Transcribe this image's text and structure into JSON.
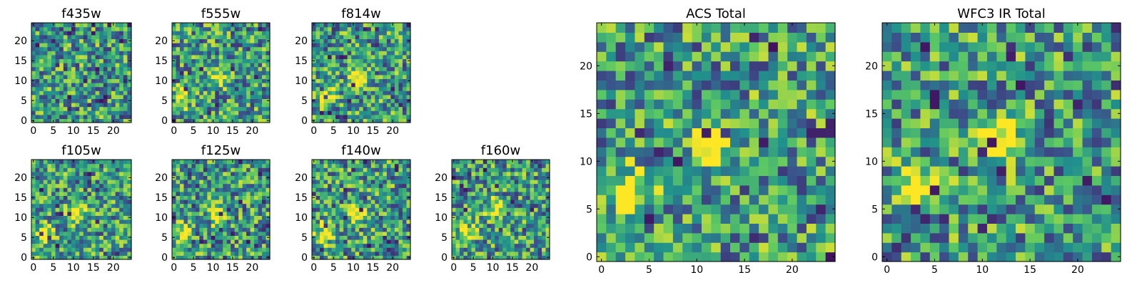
{
  "chart_data": [
    {
      "type": "heatmap",
      "title": "f435w",
      "x_ticks": [
        "0",
        "5",
        "10",
        "15",
        "20"
      ],
      "y_ticks": [
        "0",
        "5",
        "10",
        "15",
        "20"
      ],
      "xlim": [
        -0.5,
        24.5
      ],
      "ylim": [
        -0.5,
        24.5
      ],
      "grid": false,
      "colormap": [
        "#440154",
        "#3b528b",
        "#21918c",
        "#5ec962",
        "#fde725"
      ],
      "bright_spots": []
    },
    {
      "type": "heatmap",
      "title": "f555w",
      "x_ticks": [
        "0",
        "5",
        "10",
        "15",
        "20"
      ],
      "y_ticks": [
        "0",
        "5",
        "10",
        "15",
        "20"
      ],
      "xlim": [
        -0.5,
        24.5
      ],
      "ylim": [
        -0.5,
        24.5
      ],
      "grid": false,
      "colormap": [
        "#440154",
        "#3b528b",
        "#21918c",
        "#5ec962",
        "#fde725"
      ],
      "bright_spots": [
        {
          "x": 2,
          "y": 6
        },
        {
          "x": 11,
          "y": 11
        }
      ]
    },
    {
      "type": "heatmap",
      "title": "f814w",
      "x_ticks": [
        "0",
        "5",
        "10",
        "15",
        "20"
      ],
      "y_ticks": [
        "0",
        "5",
        "10",
        "15",
        "20"
      ],
      "xlim": [
        -0.5,
        24.5
      ],
      "ylim": [
        -0.5,
        24.5
      ],
      "grid": false,
      "colormap": [
        "#440154",
        "#3b528b",
        "#21918c",
        "#5ec962",
        "#fde725"
      ],
      "bright_spots": [
        {
          "x": 3,
          "y": 6
        },
        {
          "x": 11,
          "y": 11
        }
      ]
    },
    {
      "type": "heatmap",
      "title": "f105w",
      "x_ticks": [
        "0",
        "5",
        "10",
        "15",
        "20"
      ],
      "y_ticks": [
        "0",
        "5",
        "10",
        "15",
        "20"
      ],
      "xlim": [
        -0.5,
        24.5
      ],
      "ylim": [
        -0.5,
        24.5
      ],
      "grid": false,
      "colormap": [
        "#440154",
        "#3b528b",
        "#21918c",
        "#5ec962",
        "#fde725"
      ],
      "bright_spots": [
        {
          "x": 11,
          "y": 11
        },
        {
          "x": 3,
          "y": 6
        }
      ]
    },
    {
      "type": "heatmap",
      "title": "f125w",
      "x_ticks": [
        "0",
        "5",
        "10",
        "15",
        "20"
      ],
      "y_ticks": [
        "0",
        "5",
        "10",
        "15",
        "20"
      ],
      "xlim": [
        -0.5,
        24.5
      ],
      "ylim": [
        -0.5,
        24.5
      ],
      "grid": false,
      "colormap": [
        "#440154",
        "#3b528b",
        "#21918c",
        "#5ec962",
        "#fde725"
      ],
      "bright_spots": [
        {
          "x": 11,
          "y": 11
        },
        {
          "x": 3,
          "y": 6
        }
      ]
    },
    {
      "type": "heatmap",
      "title": "f140w",
      "x_ticks": [
        "0",
        "5",
        "10",
        "15",
        "20"
      ],
      "y_ticks": [
        "0",
        "5",
        "10",
        "15",
        "20"
      ],
      "xlim": [
        -0.5,
        24.5
      ],
      "ylim": [
        -0.5,
        24.5
      ],
      "grid": false,
      "colormap": [
        "#440154",
        "#3b528b",
        "#21918c",
        "#5ec962",
        "#fde725"
      ],
      "bright_spots": [
        {
          "x": 11,
          "y": 11
        },
        {
          "x": 3,
          "y": 6
        }
      ]
    },
    {
      "type": "heatmap",
      "title": "f160w",
      "x_ticks": [
        "0",
        "5",
        "10",
        "15",
        "20"
      ],
      "y_ticks": [
        "0",
        "5",
        "10",
        "15",
        "20"
      ],
      "xlim": [
        -0.5,
        24.5
      ],
      "ylim": [
        -0.5,
        24.5
      ],
      "grid": false,
      "colormap": [
        "#440154",
        "#3b528b",
        "#21918c",
        "#5ec962",
        "#fde725"
      ],
      "bright_spots": [
        {
          "x": 11,
          "y": 12
        },
        {
          "x": 3,
          "y": 6
        }
      ]
    },
    {
      "type": "heatmap",
      "title": "ACS Total",
      "x_ticks": [
        "0",
        "5",
        "10",
        "15",
        "20"
      ],
      "y_ticks": [
        "0",
        "5",
        "10",
        "15",
        "20"
      ],
      "xlim": [
        -0.5,
        24.5
      ],
      "ylim": [
        -0.5,
        24.5
      ],
      "grid": false,
      "colormap": [
        "#440154",
        "#3b528b",
        "#21918c",
        "#5ec962",
        "#fde725"
      ],
      "bright_spots": [
        {
          "x": 3,
          "y": 7
        },
        {
          "x": 12,
          "y": 12
        }
      ]
    },
    {
      "type": "heatmap",
      "title": "WFC3 IR Total",
      "x_ticks": [
        "0",
        "5",
        "10",
        "15",
        "20"
      ],
      "y_ticks": [
        "0",
        "5",
        "10",
        "15",
        "20"
      ],
      "xlim": [
        -0.5,
        24.5
      ],
      "ylim": [
        -0.5,
        24.5
      ],
      "grid": false,
      "colormap": [
        "#440154",
        "#3b528b",
        "#21918c",
        "#5ec962",
        "#fde725"
      ],
      "bright_spots": [
        {
          "x": 3,
          "y": 7
        },
        {
          "x": 12,
          "y": 12
        }
      ]
    }
  ]
}
